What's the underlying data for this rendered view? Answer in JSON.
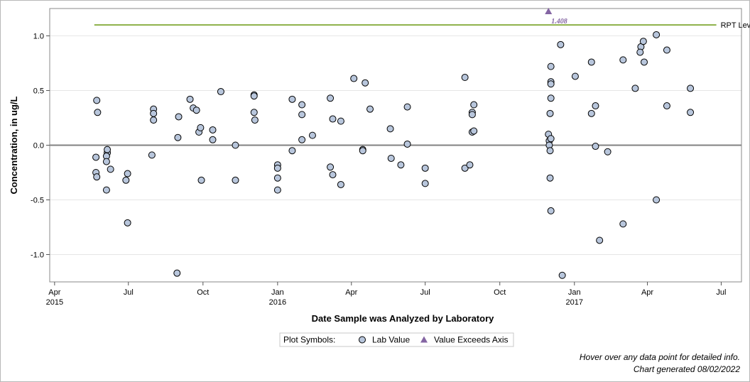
{
  "chart_data": {
    "type": "scatter",
    "xlabel": "Date Sample was Analyzed by Laboratory",
    "ylabel": "Concentration, in ug/L",
    "x_range": [
      "2015-03-26",
      "2017-07-26"
    ],
    "ylim": [
      -1.25,
      1.25
    ],
    "y_ticks": [
      1.0,
      0.5,
      0.0,
      -0.5,
      -1.0
    ],
    "y_tick_labels": [
      "1.0",
      "0.5",
      "0.0",
      "-0.5",
      "-1.0"
    ],
    "x_ticks": [
      {
        "date": "2015-04-01",
        "label": "Apr",
        "year": "2015"
      },
      {
        "date": "2015-07-01",
        "label": "Jul",
        "year": ""
      },
      {
        "date": "2015-10-01",
        "label": "Oct",
        "year": ""
      },
      {
        "date": "2016-01-01",
        "label": "Jan",
        "year": "2016"
      },
      {
        "date": "2016-04-01",
        "label": "Apr",
        "year": ""
      },
      {
        "date": "2016-07-01",
        "label": "Jul",
        "year": ""
      },
      {
        "date": "2016-10-01",
        "label": "Oct",
        "year": ""
      },
      {
        "date": "2017-01-01",
        "label": "Jan",
        "year": "2017"
      },
      {
        "date": "2017-04-01",
        "label": "Apr",
        "year": ""
      },
      {
        "date": "2017-07-01",
        "label": "Jul",
        "year": ""
      }
    ],
    "grid": "horizontal",
    "reference_lines": [
      {
        "name": "RPT Level",
        "y": 1.1,
        "x_start": "2015-05-20",
        "x_end": "2017-06-25",
        "color": "#8cb047"
      },
      {
        "name": "",
        "y": 0.0,
        "color": "#808080"
      }
    ],
    "series": [
      {
        "name": "Lab Value",
        "marker": "circle",
        "color": "#b8c6dc",
        "points": [
          {
            "x": "2015-05-23",
            "y": 0.41
          },
          {
            "x": "2015-05-24",
            "y": 0.3
          },
          {
            "x": "2015-05-22",
            "y": -0.11
          },
          {
            "x": "2015-05-22",
            "y": -0.25
          },
          {
            "x": "2015-05-23",
            "y": -0.29
          },
          {
            "x": "2015-06-05",
            "y": -0.07
          },
          {
            "x": "2015-06-04",
            "y": -0.1
          },
          {
            "x": "2015-06-05",
            "y": -0.04
          },
          {
            "x": "2015-06-04",
            "y": -0.15
          },
          {
            "x": "2015-06-09",
            "y": -0.22
          },
          {
            "x": "2015-06-04",
            "y": -0.41
          },
          {
            "x": "2015-06-28",
            "y": -0.32
          },
          {
            "x": "2015-06-30",
            "y": -0.26
          },
          {
            "x": "2015-06-30",
            "y": -0.71
          },
          {
            "x": "2015-07-30",
            "y": -0.09
          },
          {
            "x": "2015-08-01",
            "y": 0.33
          },
          {
            "x": "2015-08-01",
            "y": 0.29
          },
          {
            "x": "2015-08-01",
            "y": 0.23
          },
          {
            "x": "2015-08-31",
            "y": 0.07
          },
          {
            "x": "2015-09-01",
            "y": 0.26
          },
          {
            "x": "2015-08-30",
            "y": -1.17
          },
          {
            "x": "2015-09-15",
            "y": 0.42
          },
          {
            "x": "2015-09-19",
            "y": 0.34
          },
          {
            "x": "2015-09-23",
            "y": 0.32
          },
          {
            "x": "2015-09-26",
            "y": 0.12
          },
          {
            "x": "2015-09-28",
            "y": 0.16
          },
          {
            "x": "2015-09-29",
            "y": -0.32
          },
          {
            "x": "2015-10-13",
            "y": 0.14
          },
          {
            "x": "2015-10-13",
            "y": 0.05
          },
          {
            "x": "2015-10-23",
            "y": 0.49
          },
          {
            "x": "2015-11-10",
            "y": 0.0
          },
          {
            "x": "2015-11-10",
            "y": -0.32
          },
          {
            "x": "2015-12-03",
            "y": 0.46
          },
          {
            "x": "2015-12-03",
            "y": 0.45
          },
          {
            "x": "2015-12-03",
            "y": 0.3
          },
          {
            "x": "2015-12-04",
            "y": 0.23
          },
          {
            "x": "2016-01-01",
            "y": -0.18
          },
          {
            "x": "2016-01-01",
            "y": -0.21
          },
          {
            "x": "2016-01-01",
            "y": -0.3
          },
          {
            "x": "2016-01-01",
            "y": -0.41
          },
          {
            "x": "2016-01-19",
            "y": 0.42
          },
          {
            "x": "2016-01-19",
            "y": -0.05
          },
          {
            "x": "2016-01-31",
            "y": 0.37
          },
          {
            "x": "2016-01-31",
            "y": 0.28
          },
          {
            "x": "2016-01-31",
            "y": 0.05
          },
          {
            "x": "2016-02-13",
            "y": 0.09
          },
          {
            "x": "2016-03-06",
            "y": 0.43
          },
          {
            "x": "2016-03-06",
            "y": -0.2
          },
          {
            "x": "2016-03-09",
            "y": 0.24
          },
          {
            "x": "2016-03-09",
            "y": -0.27
          },
          {
            "x": "2016-03-19",
            "y": 0.22
          },
          {
            "x": "2016-03-19",
            "y": -0.36
          },
          {
            "x": "2016-04-04",
            "y": 0.61
          },
          {
            "x": "2016-04-15",
            "y": -0.04
          },
          {
            "x": "2016-04-15",
            "y": -0.05
          },
          {
            "x": "2016-04-18",
            "y": 0.57
          },
          {
            "x": "2016-04-24",
            "y": 0.33
          },
          {
            "x": "2016-05-19",
            "y": 0.15
          },
          {
            "x": "2016-05-20",
            "y": -0.12
          },
          {
            "x": "2016-06-01",
            "y": -0.18
          },
          {
            "x": "2016-06-09",
            "y": 0.35
          },
          {
            "x": "2016-06-09",
            "y": 0.01
          },
          {
            "x": "2016-07-01",
            "y": -0.21
          },
          {
            "x": "2016-07-01",
            "y": -0.35
          },
          {
            "x": "2016-08-19",
            "y": 0.62
          },
          {
            "x": "2016-08-19",
            "y": -0.21
          },
          {
            "x": "2016-08-25",
            "y": -0.18
          },
          {
            "x": "2016-08-28",
            "y": 0.3
          },
          {
            "x": "2016-08-28",
            "y": 0.28
          },
          {
            "x": "2016-08-28",
            "y": 0.12
          },
          {
            "x": "2016-08-30",
            "y": 0.37
          },
          {
            "x": "2016-08-30",
            "y": 0.13
          },
          {
            "x": "2016-11-30",
            "y": 0.1
          },
          {
            "x": "2016-12-01",
            "y": 0.04
          },
          {
            "x": "2016-12-01",
            "y": 0.0
          },
          {
            "x": "2016-12-02",
            "y": -0.05
          },
          {
            "x": "2016-12-03",
            "y": 0.06
          },
          {
            "x": "2016-12-02",
            "y": -0.3
          },
          {
            "x": "2016-12-03",
            "y": 0.72
          },
          {
            "x": "2016-12-03",
            "y": 0.58
          },
          {
            "x": "2016-12-03",
            "y": 0.56
          },
          {
            "x": "2016-12-03",
            "y": 0.43
          },
          {
            "x": "2016-12-02",
            "y": 0.29
          },
          {
            "x": "2016-12-03",
            "y": -0.6
          },
          {
            "x": "2016-12-15",
            "y": 0.92
          },
          {
            "x": "2016-12-17",
            "y": -1.19
          },
          {
            "x": "2017-01-02",
            "y": 0.63
          },
          {
            "x": "2017-01-22",
            "y": 0.76
          },
          {
            "x": "2017-01-22",
            "y": 0.29
          },
          {
            "x": "2017-01-27",
            "y": 0.36
          },
          {
            "x": "2017-01-27",
            "y": -0.01
          },
          {
            "x": "2017-02-01",
            "y": -0.87
          },
          {
            "x": "2017-02-11",
            "y": -0.06
          },
          {
            "x": "2017-03-02",
            "y": 0.78
          },
          {
            "x": "2017-03-02",
            "y": -0.72
          },
          {
            "x": "2017-03-17",
            "y": 0.52
          },
          {
            "x": "2017-03-24",
            "y": 0.9
          },
          {
            "x": "2017-03-23",
            "y": 0.85
          },
          {
            "x": "2017-03-27",
            "y": 0.95
          },
          {
            "x": "2017-03-28",
            "y": 0.76
          },
          {
            "x": "2017-04-12",
            "y": 1.01
          },
          {
            "x": "2017-04-12",
            "y": -0.5
          },
          {
            "x": "2017-04-25",
            "y": 0.87
          },
          {
            "x": "2017-04-25",
            "y": 0.36
          },
          {
            "x": "2017-05-24",
            "y": 0.52
          },
          {
            "x": "2017-05-24",
            "y": 0.3
          }
        ]
      },
      {
        "name": "Value Exceeds Axis",
        "marker": "triangle",
        "color": "#8465a3",
        "points": [
          {
            "x": "2016-11-30",
            "y": 1.408,
            "label": "1.408"
          }
        ]
      }
    ],
    "legend": {
      "position": "bottom-center",
      "title": "Plot Symbols:",
      "items": [
        {
          "label": "Lab Value",
          "marker": "circle"
        },
        {
          "label": "Value Exceeds Axis",
          "marker": "triangle"
        }
      ]
    }
  },
  "footer": {
    "hover_note": "Hover over any data point for detailed info.",
    "generated": "Chart generated 08/02/2022"
  }
}
